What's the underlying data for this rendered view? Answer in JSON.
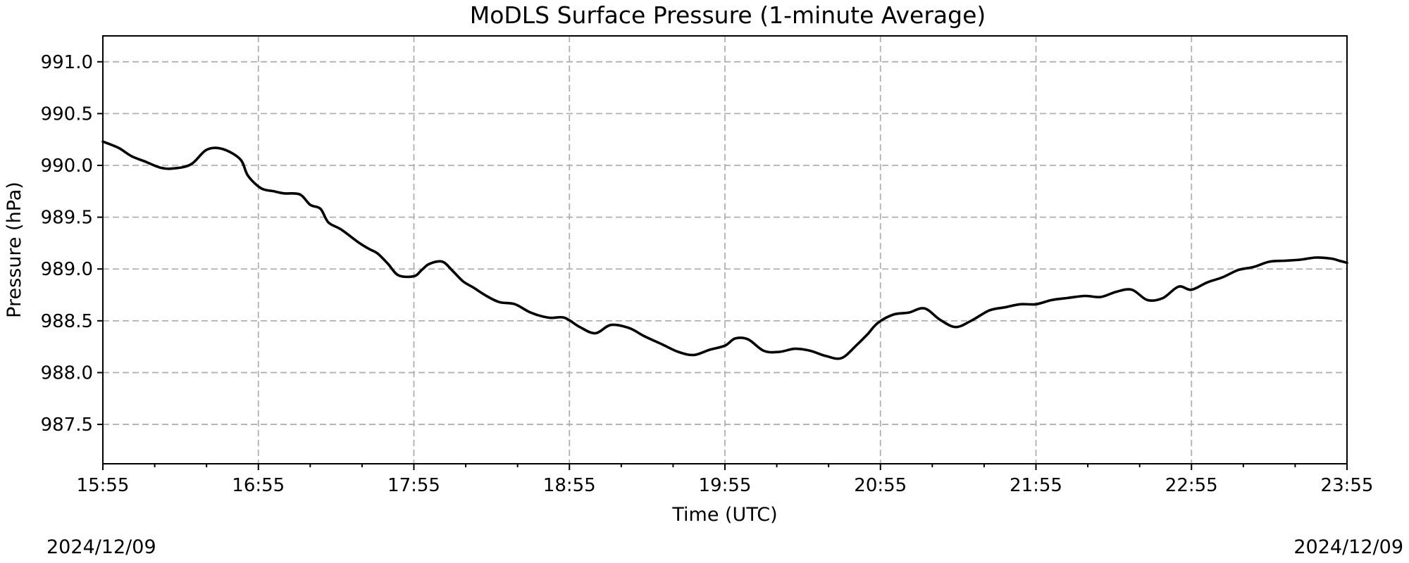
{
  "chart_data": {
    "type": "line",
    "title": "MoDLS Surface Pressure (1-minute Average)",
    "xlabel": "Time (UTC)",
    "ylabel": "Pressure (hPa)",
    "x_ticks": [
      "15:55",
      "16:55",
      "17:55",
      "18:55",
      "19:55",
      "20:55",
      "21:55",
      "22:55",
      "23:55"
    ],
    "y_ticks": [
      "987.5",
      "988.0",
      "988.5",
      "989.0",
      "989.5",
      "990.0",
      "990.5",
      "991.0"
    ],
    "xlim": [
      "15:55",
      "23:55"
    ],
    "ylim": [
      987.12,
      991.25
    ],
    "grid": true,
    "date_left": "2024/12/09",
    "date_right": "2024/12/09",
    "line_color": "#000000",
    "series": [
      {
        "x": [
          "15:55",
          "16:01",
          "16:06",
          "16:11",
          "16:17",
          "16:22",
          "16:29",
          "16:35",
          "16:41",
          "16:48",
          "16:51",
          "16:56",
          "17:01",
          "17:05",
          "17:11",
          "17:15",
          "17:19",
          "17:22",
          "17:27",
          "17:34",
          "17:38",
          "17:41",
          "17:45",
          "17:49",
          "17:55",
          "17:58",
          "18:01",
          "18:06",
          "18:10",
          "18:14",
          "18:18",
          "18:23",
          "18:28",
          "18:34",
          "18:40",
          "18:47",
          "18:53",
          "18:59",
          "19:05",
          "19:11",
          "19:18",
          "19:24",
          "19:31",
          "19:37",
          "19:43",
          "19:49",
          "19:55",
          "19:59",
          "20:04",
          "20:10",
          "20:16",
          "20:22",
          "20:28",
          "20:34",
          "20:40",
          "20:46",
          "20:50",
          "20:54",
          "21:00",
          "21:06",
          "21:12",
          "21:18",
          "21:24",
          "21:30",
          "21:37",
          "21:43",
          "21:49",
          "21:55",
          "22:01",
          "22:07",
          "22:14",
          "22:20",
          "22:26",
          "22:32",
          "22:38",
          "22:44",
          "22:50",
          "22:55",
          "23:01",
          "23:07",
          "23:13",
          "23:19",
          "23:25",
          "23:31",
          "23:37",
          "23:43",
          "23:49",
          "23:52",
          "23:55"
        ],
        "y": [
          990.23,
          990.17,
          990.09,
          990.04,
          989.98,
          989.97,
          990.01,
          990.15,
          990.16,
          990.06,
          989.9,
          989.78,
          989.75,
          989.73,
          989.72,
          989.62,
          989.58,
          989.45,
          989.38,
          989.25,
          989.19,
          989.15,
          989.05,
          988.94,
          988.93,
          988.99,
          989.05,
          989.07,
          988.98,
          988.88,
          988.82,
          988.74,
          988.68,
          988.66,
          988.58,
          988.53,
          988.53,
          988.44,
          988.38,
          988.46,
          988.43,
          988.35,
          988.27,
          988.2,
          988.17,
          988.22,
          988.26,
          988.33,
          988.32,
          988.21,
          988.2,
          988.23,
          988.21,
          988.16,
          988.14,
          988.27,
          988.37,
          988.48,
          988.56,
          988.58,
          988.62,
          988.51,
          988.44,
          988.5,
          988.6,
          988.63,
          988.66,
          988.66,
          988.7,
          988.72,
          988.74,
          988.73,
          988.78,
          988.8,
          988.7,
          988.72,
          988.83,
          988.8,
          988.87,
          988.92,
          988.99,
          989.02,
          989.07,
          989.08,
          989.09,
          989.11,
          989.1,
          989.08,
          989.06
        ]
      }
    ]
  }
}
